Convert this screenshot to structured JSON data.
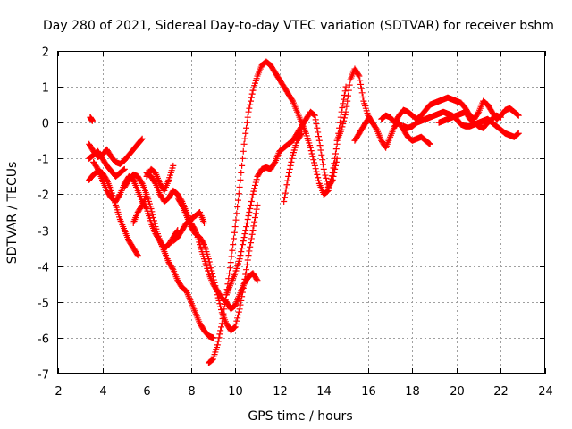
{
  "chart_data": {
    "type": "scatter",
    "title": "Day 280 of 2021, Sidereal Day-to-day VTEC variation (SDTVAR) for receiver bshm",
    "xlabel": "GPS time / hours",
    "ylabel": "SDTVAR / TECUs",
    "xlim": [
      2,
      24
    ],
    "ylim": [
      -7,
      2
    ],
    "xticks": [
      2,
      4,
      6,
      8,
      10,
      12,
      14,
      16,
      18,
      20,
      22,
      24
    ],
    "yticks": [
      2,
      1,
      0,
      -1,
      -2,
      -3,
      -4,
      -5,
      -6,
      -7
    ],
    "grid": true,
    "marker": "+",
    "color": "#ff0000",
    "series": [
      {
        "x": [
          3.45,
          3.5,
          3.55
        ],
        "y": [
          0.15,
          0.1,
          0.05
        ]
      },
      {
        "x": [
          3.4,
          3.6,
          3.8,
          4.0,
          4.2,
          4.4,
          4.6,
          4.8,
          5.0,
          5.2,
          5.4,
          5.6,
          5.8
        ],
        "y": [
          -0.6,
          -0.8,
          -0.95,
          -0.9,
          -0.75,
          -0.95,
          -1.1,
          -1.15,
          -1.05,
          -0.9,
          -0.75,
          -0.6,
          -0.45
        ]
      },
      {
        "x": [
          3.4,
          3.6,
          3.8,
          4.0,
          4.2,
          4.4,
          4.6,
          4.8,
          5.0,
          5.2,
          5.4,
          5.6
        ],
        "y": [
          -1.6,
          -1.45,
          -1.35,
          -1.4,
          -1.6,
          -1.9,
          -2.3,
          -2.7,
          -3.0,
          -3.3,
          -3.5,
          -3.7
        ]
      },
      {
        "x": [
          3.4,
          3.6,
          3.8,
          4.0,
          4.2,
          4.4,
          4.6,
          4.8,
          5.0
        ],
        "y": [
          -1.0,
          -0.9,
          -0.8,
          -1.0,
          -1.2,
          -1.35,
          -1.5,
          -1.4,
          -1.3
        ]
      },
      {
        "x": [
          5.4,
          5.6,
          5.8,
          6.0
        ],
        "y": [
          -2.8,
          -2.5,
          -2.3,
          -2.0
        ]
      },
      {
        "x": [
          3.6,
          3.8,
          4.0,
          4.2,
          4.4,
          4.6,
          4.8,
          5.0,
          5.2,
          5.4,
          5.6,
          5.8,
          6.0,
          6.2,
          6.4,
          6.6,
          6.8,
          7.0,
          7.2,
          7.4,
          7.6,
          7.8,
          8.0,
          8.2,
          8.4,
          8.6,
          8.8,
          9.0
        ],
        "y": [
          -1.1,
          -1.3,
          -1.6,
          -1.9,
          -2.1,
          -2.2,
          -2.0,
          -1.7,
          -1.5,
          -1.6,
          -1.9,
          -2.2,
          -2.4,
          -2.8,
          -3.1,
          -3.3,
          -3.6,
          -3.9,
          -4.1,
          -4.4,
          -4.6,
          -4.7,
          -5.0,
          -5.3,
          -5.6,
          -5.8,
          -5.95,
          -6.0
        ]
      },
      {
        "x": [
          5.0,
          5.2,
          5.4,
          5.6,
          5.8,
          6.0,
          6.2,
          6.4,
          6.6,
          6.8,
          7.0,
          7.2,
          7.4
        ],
        "y": [
          -1.8,
          -1.6,
          -1.45,
          -1.5,
          -1.7,
          -2.0,
          -2.4,
          -2.9,
          -3.3,
          -3.5,
          -3.4,
          -3.2,
          -3.0
        ]
      },
      {
        "x": [
          6.0,
          6.2,
          6.4,
          6.6,
          6.8,
          7.0,
          7.2
        ],
        "y": [
          -1.5,
          -1.3,
          -1.4,
          -1.7,
          -1.9,
          -1.6,
          -1.2
        ]
      },
      {
        "x": [
          6.0,
          6.2,
          6.4,
          6.6,
          6.8,
          7.0,
          7.2,
          7.4,
          7.6,
          7.8,
          8.0,
          8.2,
          8.4,
          8.6,
          8.8,
          9.0,
          9.2,
          9.4,
          9.6,
          9.8,
          10.0,
          10.2,
          10.4,
          10.6,
          10.8,
          11.0
        ],
        "y": [
          -1.4,
          -1.5,
          -1.7,
          -2.0,
          -2.2,
          -2.1,
          -1.9,
          -2.0,
          -2.2,
          -2.5,
          -2.8,
          -3.0,
          -3.4,
          -3.8,
          -4.2,
          -4.5,
          -4.7,
          -4.9,
          -5.0,
          -5.2,
          -5.1,
          -4.8,
          -4.5,
          -4.3,
          -4.2,
          -4.4
        ]
      },
      {
        "x": [
          7.4,
          7.6,
          7.8,
          8.0,
          8.2,
          8.4,
          8.6,
          8.8,
          9.0,
          9.2,
          9.4,
          9.6,
          9.8,
          10.0,
          10.2,
          10.4,
          10.6,
          10.8,
          11.0
        ],
        "y": [
          -2.1,
          -2.3,
          -2.6,
          -2.9,
          -3.1,
          -3.2,
          -3.4,
          -3.8,
          -4.3,
          -4.8,
          -5.3,
          -5.6,
          -5.8,
          -5.7,
          -5.2,
          -4.5,
          -3.7,
          -3.0,
          -2.3
        ]
      },
      {
        "x": [
          7.2,
          7.4,
          7.6,
          7.8,
          8.0,
          8.2,
          8.4,
          8.6
        ],
        "y": [
          -3.3,
          -3.2,
          -3.0,
          -2.8,
          -2.7,
          -2.6,
          -2.5,
          -2.8
        ]
      },
      {
        "x": [
          8.8,
          9.0,
          9.2,
          9.4,
          9.6,
          9.8,
          10.0,
          10.2,
          10.4,
          10.6,
          10.8,
          11.0,
          11.2,
          11.4,
          11.6,
          11.8,
          12.0,
          12.2,
          12.4,
          12.6,
          12.8,
          13.0,
          13.2,
          13.4,
          13.6,
          13.8,
          14.0,
          14.2,
          14.4,
          14.6,
          14.8,
          15.0
        ],
        "y": [
          -6.7,
          -6.6,
          -6.2,
          -5.6,
          -4.8,
          -3.9,
          -2.9,
          -1.8,
          -0.6,
          0.3,
          0.9,
          1.3,
          1.6,
          1.7,
          1.6,
          1.4,
          1.2,
          1.0,
          0.8,
          0.6,
          0.3,
          0.0,
          -0.3,
          -0.7,
          -1.2,
          -1.7,
          -2.0,
          -1.9,
          -1.4,
          -0.6,
          0.3,
          1.0
        ]
      },
      {
        "x": [
          9.6,
          9.8,
          10.0,
          10.2,
          10.4,
          10.6,
          10.8,
          11.0,
          11.2,
          11.4,
          11.6,
          11.8,
          12.0,
          12.2,
          12.4,
          12.6,
          12.8,
          13.0,
          13.2,
          13.4,
          13.6,
          13.8,
          14.0,
          14.2,
          14.4,
          14.6
        ],
        "y": [
          -4.8,
          -4.5,
          -4.2,
          -3.8,
          -3.2,
          -2.6,
          -2.0,
          -1.5,
          -1.3,
          -1.25,
          -1.3,
          -1.1,
          -0.8,
          -0.7,
          -0.6,
          -0.5,
          -0.3,
          -0.1,
          0.1,
          0.3,
          0.2,
          -0.5,
          -1.3,
          -1.8,
          -1.6,
          -1.0
        ]
      },
      {
        "x": [
          12.2,
          12.4,
          12.6,
          12.8,
          13.0
        ],
        "y": [
          -2.2,
          -1.5,
          -0.9,
          -0.5,
          -0.3
        ]
      },
      {
        "x": [
          14.6,
          14.8,
          15.0,
          15.2,
          15.4,
          15.6,
          15.8,
          16.0,
          16.2
        ],
        "y": [
          -0.5,
          -0.2,
          0.3,
          1.2,
          1.5,
          1.3,
          0.6,
          0.2,
          0.0
        ]
      },
      {
        "x": [
          15.4,
          15.6,
          15.8,
          16.0,
          16.2,
          16.4,
          16.6,
          16.8,
          17.0,
          17.2,
          17.4,
          17.6,
          17.8,
          18.0,
          18.2,
          18.4,
          18.6,
          18.8
        ],
        "y": [
          -0.5,
          -0.3,
          -0.1,
          0.1,
          0.0,
          -0.2,
          -0.5,
          -0.7,
          -0.4,
          -0.1,
          0.0,
          -0.2,
          -0.4,
          -0.5,
          -0.45,
          -0.4,
          -0.5,
          -0.6
        ]
      },
      {
        "x": [
          16.6,
          16.8,
          17.0,
          17.2,
          17.4,
          17.6,
          17.8,
          18.0,
          18.2,
          18.4,
          18.6,
          18.8,
          19.0,
          19.2,
          19.4,
          19.6,
          19.8,
          20.0,
          20.2,
          20.4,
          20.6,
          20.8,
          21.0,
          21.2,
          21.4,
          21.6,
          21.8,
          22.0,
          22.2,
          22.4,
          22.6,
          22.8
        ],
        "y": [
          0.1,
          0.2,
          0.15,
          0.0,
          0.2,
          0.35,
          0.3,
          0.2,
          0.1,
          0.2,
          0.35,
          0.5,
          0.55,
          0.6,
          0.65,
          0.7,
          0.65,
          0.6,
          0.55,
          0.4,
          0.2,
          0.1,
          0.3,
          0.6,
          0.5,
          0.3,
          0.1,
          0.2,
          0.35,
          0.4,
          0.3,
          0.2
        ]
      },
      {
        "x": [
          17.6,
          17.8,
          18.0,
          18.2,
          18.4,
          18.6,
          18.8,
          19.0,
          19.2,
          19.4,
          19.6,
          19.8,
          20.0,
          20.2,
          20.4,
          20.6,
          20.8,
          21.0,
          21.2,
          21.4,
          21.6,
          21.8,
          22.0,
          22.2,
          22.4,
          22.6,
          22.8
        ],
        "y": [
          -0.1,
          -0.15,
          -0.1,
          0.0,
          0.05,
          0.1,
          0.15,
          0.2,
          0.25,
          0.3,
          0.25,
          0.2,
          0.1,
          -0.05,
          -0.1,
          -0.1,
          -0.05,
          0.0,
          0.05,
          0.1,
          0.0,
          -0.1,
          -0.2,
          -0.3,
          -0.35,
          -0.4,
          -0.3
        ]
      },
      {
        "x": [
          19.2,
          19.4,
          19.6,
          19.8,
          20.0,
          20.2,
          20.4,
          20.6,
          20.8,
          21.0,
          21.2,
          21.4,
          21.6,
          21.8,
          22.0
        ],
        "y": [
          0.0,
          0.05,
          0.1,
          0.15,
          0.2,
          0.25,
          0.3,
          0.1,
          0.0,
          -0.1,
          -0.15,
          0.0,
          0.1,
          0.2,
          0.15
        ]
      }
    ]
  }
}
